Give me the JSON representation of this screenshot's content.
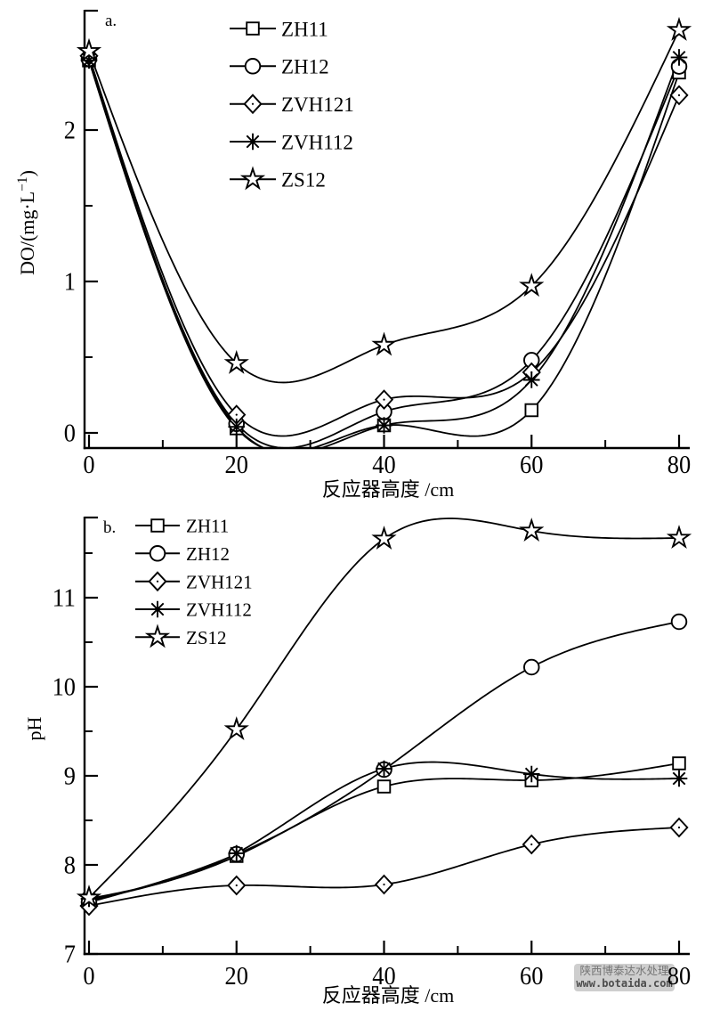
{
  "figure": {
    "background": "#ffffff"
  },
  "watermark": {
    "line1": "陕西博泰达水处理",
    "line2": "www.botaida.com",
    "bg": "#cbcbcb",
    "text_color": "#6b6b6b",
    "url_color": "#3f3f3f"
  },
  "chart_data": [
    {
      "id": "a",
      "panel_label": "a.",
      "type": "line",
      "xlabel": "反应器高度 /cm",
      "ylabel": "DO/(mg·L⁻¹)",
      "x": [
        0,
        20,
        40,
        60,
        80
      ],
      "x_ticks": [
        0,
        20,
        40,
        60,
        80
      ],
      "x_minor_ticks": [
        10,
        30,
        50,
        70
      ],
      "y_ticks": [
        0,
        1,
        2
      ],
      "y_minor_ticks": [
        0.5,
        1.5,
        2.5
      ],
      "ylim": [
        -0.1,
        2.79
      ],
      "grid": false,
      "legend_position": "top-center",
      "series": [
        {
          "name": "ZH11",
          "marker": "square",
          "values": [
            2.46,
            0.03,
            0.05,
            0.15,
            2.38
          ]
        },
        {
          "name": "ZH12",
          "marker": "circle",
          "values": [
            2.47,
            0.06,
            0.14,
            0.48,
            2.42
          ]
        },
        {
          "name": "ZVH121",
          "marker": "diamond",
          "values": [
            2.49,
            0.12,
            0.22,
            0.4,
            2.23
          ]
        },
        {
          "name": "ZVH112",
          "marker": "asterisk",
          "values": [
            2.46,
            0.04,
            0.05,
            0.35,
            2.48
          ]
        },
        {
          "name": "ZS12",
          "marker": "star",
          "values": [
            2.52,
            0.46,
            0.58,
            0.97,
            2.66
          ]
        }
      ]
    },
    {
      "id": "b",
      "panel_label": "b.",
      "type": "line",
      "xlabel": "反应器高度 /cm",
      "ylabel": "pH",
      "x": [
        0,
        20,
        40,
        60,
        80
      ],
      "x_ticks": [
        0,
        20,
        40,
        60,
        80
      ],
      "x_minor_ticks": [
        10,
        30,
        50,
        70
      ],
      "y_ticks": [
        7,
        8,
        9,
        10,
        11
      ],
      "y_minor_ticks": [
        7.5,
        8.5,
        9.5,
        10.5,
        11.5
      ],
      "ylim": [
        7,
        11.9
      ],
      "grid": false,
      "legend_position": "top-left",
      "series": [
        {
          "name": "ZH11",
          "marker": "square",
          "values": [
            7.6,
            8.1,
            8.88,
            8.95,
            9.14
          ]
        },
        {
          "name": "ZH12",
          "marker": "circle",
          "values": [
            7.58,
            8.12,
            9.07,
            10.22,
            10.73
          ]
        },
        {
          "name": "ZVH121",
          "marker": "diamond",
          "values": [
            7.54,
            7.77,
            7.78,
            8.23,
            8.42
          ]
        },
        {
          "name": "ZVH112",
          "marker": "asterisk",
          "values": [
            7.62,
            8.13,
            9.08,
            9.02,
            8.97
          ]
        },
        {
          "name": "ZS12",
          "marker": "star",
          "values": [
            7.63,
            9.52,
            11.66,
            11.75,
            11.67
          ]
        }
      ]
    }
  ]
}
